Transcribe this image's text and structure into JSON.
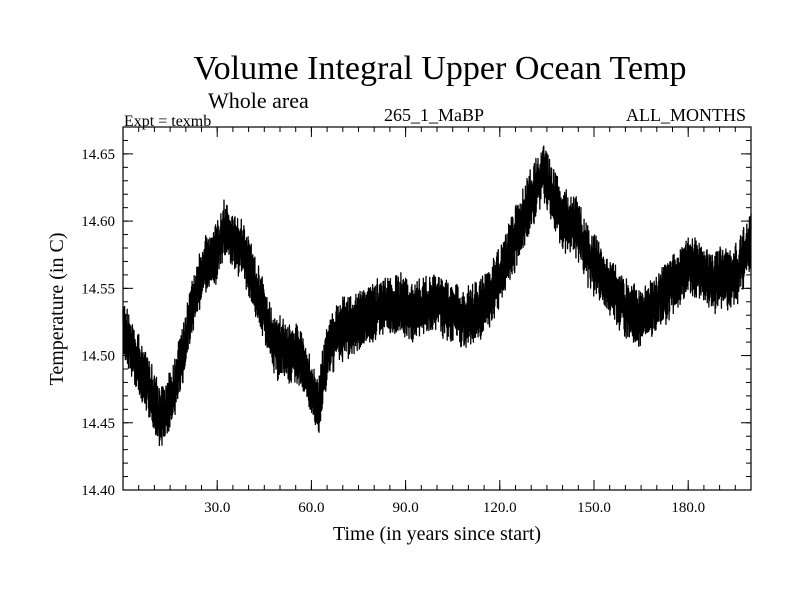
{
  "header": {
    "title": "Volume Integral Upper Ocean Temp",
    "subtitle": "Whole area",
    "experiment": "Expt = texmb",
    "case": "265_1_MaBP",
    "months": "ALL_MONTHS"
  },
  "chart_data": {
    "type": "line",
    "title": "Volume Integral Upper Ocean Temp",
    "xlabel": "Time (in years since start)",
    "ylabel": "Temperature (in C)",
    "xlim": [
      0,
      200
    ],
    "ylim": [
      14.4,
      14.67
    ],
    "x_ticks": [
      30,
      60,
      90,
      120,
      150,
      180
    ],
    "x_tick_labels": [
      "30.0",
      "60.0",
      "90.0",
      "120.0",
      "150.0",
      "180.0"
    ],
    "y_ticks": [
      14.4,
      14.45,
      14.5,
      14.55,
      14.6,
      14.65
    ],
    "y_tick_labels": [
      "14.40",
      "14.45",
      "14.50",
      "14.55",
      "14.60",
      "14.65"
    ],
    "grid": false,
    "series": [
      {
        "name": "Volume integral upper ocean temperature",
        "color": "#000000",
        "x": [
          0,
          4,
          8,
          12,
          16,
          20,
          22,
          26,
          30,
          32,
          35,
          38,
          42,
          45,
          48,
          52,
          56,
          59,
          62,
          65,
          68,
          72,
          76,
          80,
          84,
          88,
          92,
          96,
          100,
          104,
          108,
          112,
          116,
          120,
          124,
          128,
          131,
          134,
          137,
          140,
          144,
          148,
          152,
          156,
          160,
          164,
          168,
          172,
          176,
          180,
          184,
          188,
          192,
          196,
          200
        ],
        "y": [
          14.52,
          14.498,
          14.478,
          14.452,
          14.47,
          14.51,
          14.538,
          14.568,
          14.577,
          14.595,
          14.585,
          14.58,
          14.552,
          14.534,
          14.508,
          14.502,
          14.5,
          14.484,
          14.458,
          14.5,
          14.518,
          14.521,
          14.528,
          14.533,
          14.537,
          14.538,
          14.532,
          14.536,
          14.54,
          14.532,
          14.528,
          14.53,
          14.541,
          14.56,
          14.582,
          14.604,
          14.622,
          14.638,
          14.618,
          14.6,
          14.598,
          14.575,
          14.56,
          14.548,
          14.535,
          14.528,
          14.534,
          14.545,
          14.556,
          14.568,
          14.562,
          14.555,
          14.558,
          14.562,
          14.585
        ]
      }
    ]
  }
}
